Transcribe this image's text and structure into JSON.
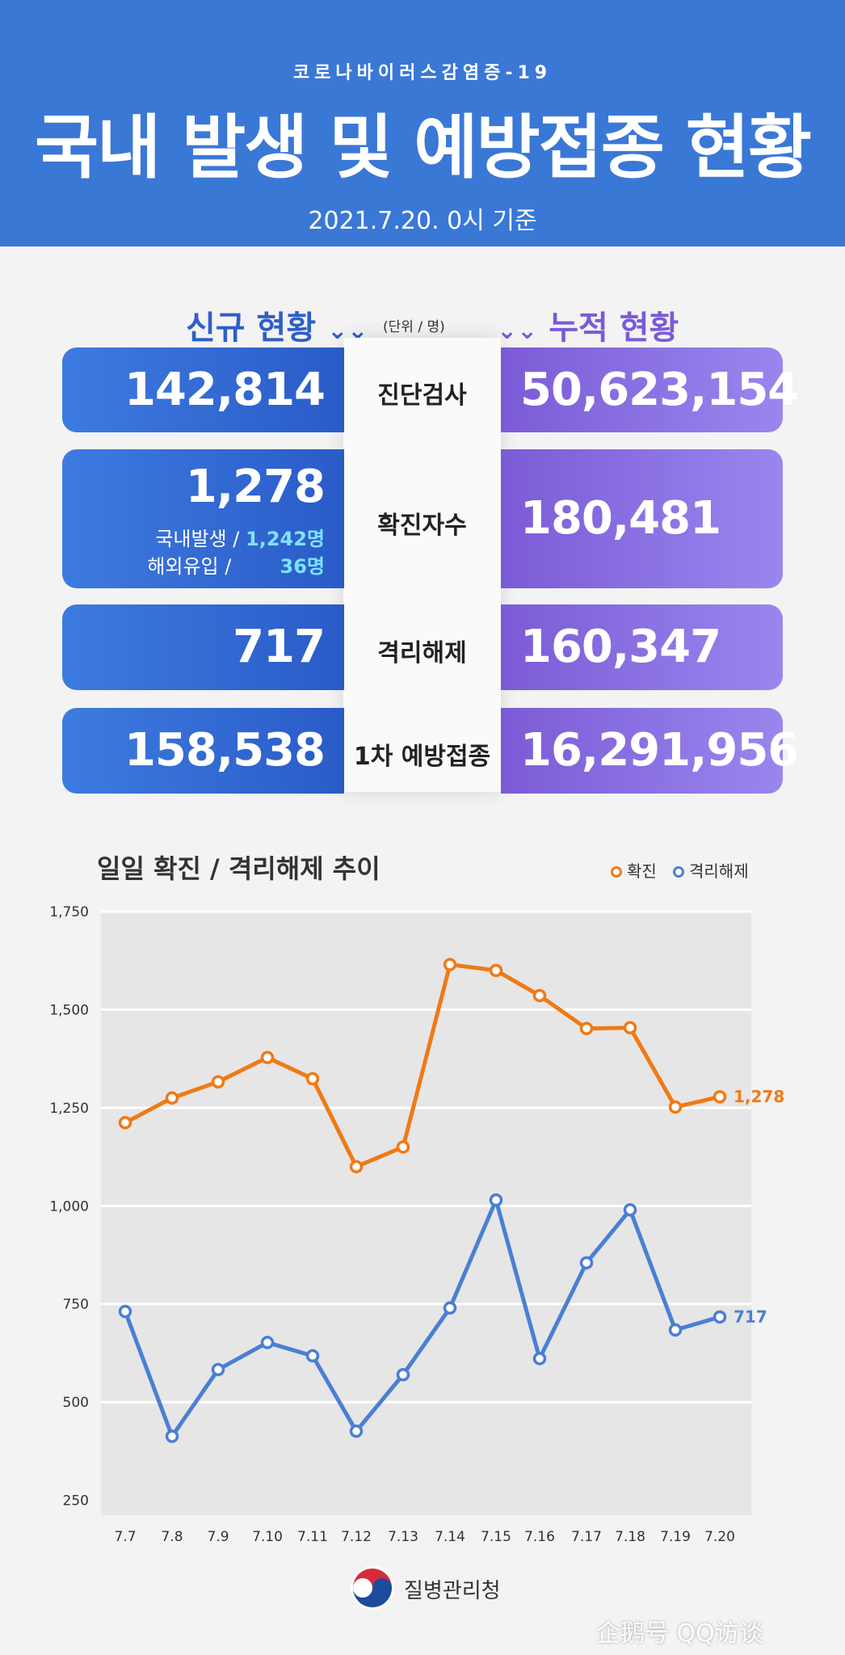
{
  "header": {
    "subtitle": "코로나바이러스감염증-19",
    "title": "국내 발생 및 예방접종 현황",
    "date": "2021.7.20. 0시 기준"
  },
  "sections": {
    "new_title": "신규 현황",
    "cumulative_title": "누적 현황",
    "unit": "(단위 / 명)",
    "arrow": "⌄⌄"
  },
  "rows": [
    {
      "label": "진단검사",
      "new": "142,814",
      "cumulative": "50,623,154"
    },
    {
      "label": "확진자수",
      "new": "1,278",
      "cumulative": "180,481",
      "breakdown": {
        "domestic_label": "국내발생 /",
        "domestic_value": "1,242명",
        "overseas_label": "해외유입 /",
        "overseas_value": "36명"
      }
    },
    {
      "label": "격리해제",
      "new": "717",
      "cumulative": "160,347"
    },
    {
      "label": "1차 예방접종",
      "new": "158,538",
      "cumulative": "16,291,956"
    }
  ],
  "chart_title": "일일 확진 / 격리해제 추이",
  "colors": {
    "confirmed": "#ef7a16",
    "released": "#4a7fd4"
  },
  "footer": {
    "agency": "질병관리청",
    "watermark": "企鹅号 QQ访谈"
  },
  "chart_data": {
    "type": "line",
    "title": "일일 확진 / 격리해제 추이",
    "x": [
      "7.7",
      "7.8",
      "7.9",
      "7.10",
      "7.11",
      "7.12",
      "7.13",
      "7.14",
      "7.15",
      "7.16",
      "7.17",
      "7.18",
      "7.19",
      "7.20"
    ],
    "y_ticks": [
      "250",
      "500",
      "750",
      "1,000",
      "1,250",
      "1,500",
      "1,750"
    ],
    "series": [
      {
        "name": "확진",
        "color": "#ef7a16",
        "values": [
          1212,
          1275,
          1316,
          1378,
          1324,
          1100,
          1150,
          1615,
          1600,
          1536,
          1452,
          1454,
          1252,
          1278
        ],
        "end_label": "1,278"
      },
      {
        "name": "격리해제",
        "color": "#4a7fd4",
        "values": [
          731,
          413,
          583,
          652,
          618,
          426,
          570,
          740,
          1015,
          611,
          855,
          990,
          684,
          717
        ],
        "end_label": "717"
      }
    ],
    "legend": "top-right",
    "grid": true
  }
}
